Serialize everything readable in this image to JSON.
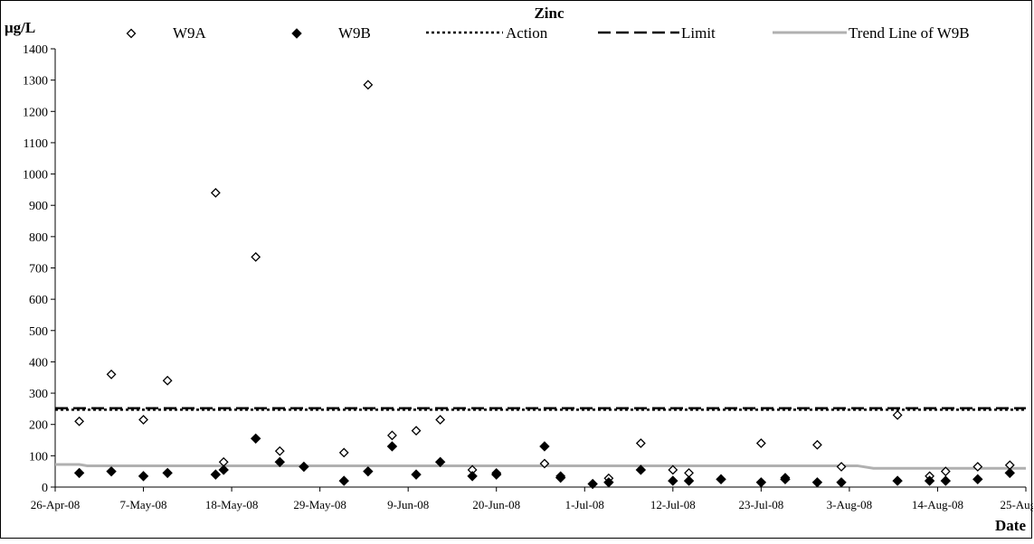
{
  "chart_data": {
    "type": "scatter",
    "title": "Zinc",
    "ylabel": "μg/L",
    "xlabel": "Date",
    "ylim": [
      0,
      1400
    ],
    "yticks": [
      0,
      100,
      200,
      300,
      400,
      500,
      600,
      700,
      800,
      900,
      1000,
      1100,
      1200,
      1300,
      1400
    ],
    "xlim": [
      "2008-04-26",
      "2008-08-25"
    ],
    "xtick_labels": [
      "26-Apr-08",
      "7-May-08",
      "18-May-08",
      "29-May-08",
      "9-Jun-08",
      "20-Jun-08",
      "1-Jul-08",
      "12-Jul-08",
      "23-Jul-08",
      "3-Aug-08",
      "14-Aug-08",
      "25-Aug-08"
    ],
    "legend_position": "top",
    "grid": false,
    "series": [
      {
        "name": "W9A",
        "style": "open-diamond",
        "color": "#000000",
        "points": [
          [
            "2008-04-29",
            210
          ],
          [
            "2008-05-03",
            360
          ],
          [
            "2008-05-07",
            215
          ],
          [
            "2008-05-10",
            340
          ],
          [
            "2008-05-16",
            940
          ],
          [
            "2008-05-17",
            80
          ],
          [
            "2008-05-21",
            735
          ],
          [
            "2008-05-24",
            115
          ],
          [
            "2008-05-27",
            65
          ],
          [
            "2008-06-01",
            110
          ],
          [
            "2008-06-04",
            1285
          ],
          [
            "2008-06-07",
            165
          ],
          [
            "2008-06-10",
            180
          ],
          [
            "2008-06-13",
            215
          ],
          [
            "2008-06-17",
            55
          ],
          [
            "2008-06-20",
            45
          ],
          [
            "2008-06-26",
            75
          ],
          [
            "2008-06-28",
            35
          ],
          [
            "2008-07-04",
            28
          ],
          [
            "2008-07-08",
            140
          ],
          [
            "2008-07-12",
            55
          ],
          [
            "2008-07-14",
            45
          ],
          [
            "2008-07-18",
            25
          ],
          [
            "2008-07-23",
            140
          ],
          [
            "2008-07-26",
            30
          ],
          [
            "2008-07-30",
            135
          ],
          [
            "2008-08-02",
            65
          ],
          [
            "2008-08-09",
            230
          ],
          [
            "2008-08-13",
            35
          ],
          [
            "2008-08-15",
            50
          ],
          [
            "2008-08-19",
            65
          ],
          [
            "2008-08-23",
            70
          ]
        ]
      },
      {
        "name": "W9B",
        "style": "filled-diamond",
        "color": "#000000",
        "points": [
          [
            "2008-04-29",
            45
          ],
          [
            "2008-05-03",
            50
          ],
          [
            "2008-05-07",
            35
          ],
          [
            "2008-05-10",
            45
          ],
          [
            "2008-05-16",
            40
          ],
          [
            "2008-05-17",
            55
          ],
          [
            "2008-05-21",
            155
          ],
          [
            "2008-05-24",
            80
          ],
          [
            "2008-05-27",
            65
          ],
          [
            "2008-06-01",
            20
          ],
          [
            "2008-06-04",
            50
          ],
          [
            "2008-06-07",
            130
          ],
          [
            "2008-06-10",
            40
          ],
          [
            "2008-06-13",
            80
          ],
          [
            "2008-06-17",
            35
          ],
          [
            "2008-06-20",
            40
          ],
          [
            "2008-06-26",
            130
          ],
          [
            "2008-06-28",
            30
          ],
          [
            "2008-07-02",
            10
          ],
          [
            "2008-07-04",
            15
          ],
          [
            "2008-07-08",
            55
          ],
          [
            "2008-07-12",
            20
          ],
          [
            "2008-07-14",
            20
          ],
          [
            "2008-07-18",
            25
          ],
          [
            "2008-07-23",
            15
          ],
          [
            "2008-07-26",
            25
          ],
          [
            "2008-07-30",
            15
          ],
          [
            "2008-08-02",
            15
          ],
          [
            "2008-08-09",
            20
          ],
          [
            "2008-08-13",
            20
          ],
          [
            "2008-08-15",
            20
          ],
          [
            "2008-08-19",
            25
          ],
          [
            "2008-08-23",
            45
          ]
        ]
      }
    ],
    "reference_lines": [
      {
        "name": "Action",
        "y": 247,
        "style": "dotted",
        "color": "#000000"
      },
      {
        "name": "Limit",
        "y": 252,
        "style": "dashed",
        "color": "#000000"
      }
    ],
    "trend_line": {
      "name": "Trend Line of W9B",
      "color": "#b0b0b0",
      "points": [
        [
          "2008-04-26",
          72
        ],
        [
          "2008-04-29",
          72
        ],
        [
          "2008-04-30",
          68
        ],
        [
          "2008-08-04",
          68
        ],
        [
          "2008-08-06",
          60
        ],
        [
          "2008-08-25",
          60
        ]
      ]
    }
  }
}
